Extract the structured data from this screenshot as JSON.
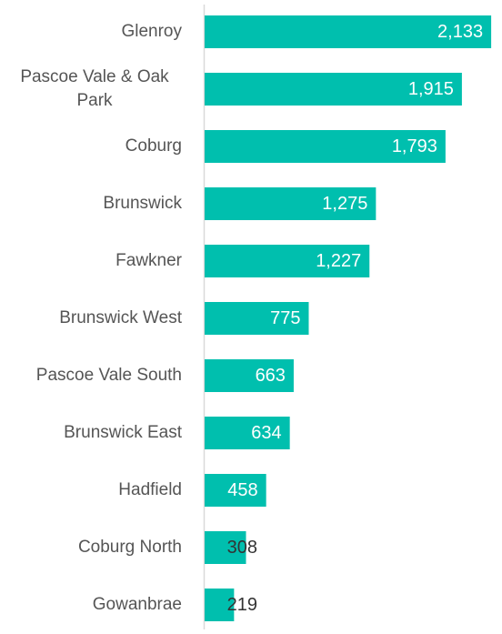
{
  "chart_data": {
    "type": "bar",
    "orientation": "horizontal",
    "categories": [
      "Glenroy",
      "Pascoe Vale & Oak Park",
      "Coburg",
      "Brunswick",
      "Fawkner",
      "Brunswick West",
      "Pascoe Vale South",
      "Brunswick East",
      "Hadfield",
      "Coburg North",
      "Gowanbrae"
    ],
    "values": [
      2133,
      1915,
      1793,
      1275,
      1227,
      775,
      663,
      634,
      458,
      308,
      219
    ],
    "value_labels": [
      "2,133",
      "1,915",
      "1,793",
      "1,275",
      "1,227",
      "775",
      "663",
      "634",
      "458",
      "308",
      "219"
    ],
    "color": "#00bfae",
    "xlim": [
      0,
      2200
    ]
  }
}
